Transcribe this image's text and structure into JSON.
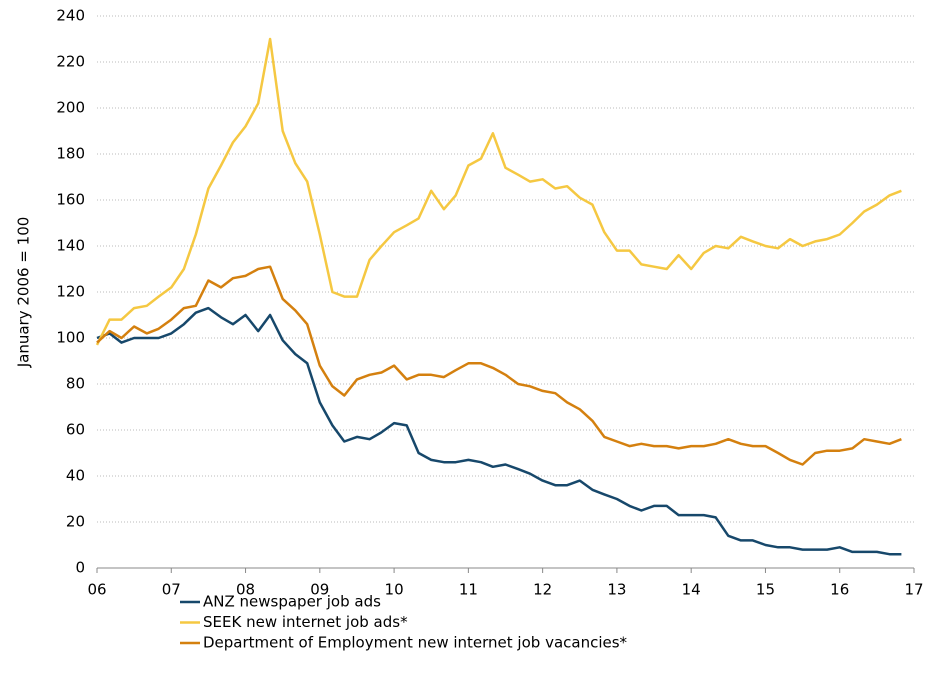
{
  "chart_data": {
    "type": "line",
    "y_label": "January 2006 = 100",
    "x": [
      2006,
      2006.17,
      2006.33,
      2006.5,
      2006.67,
      2006.83,
      2007,
      2007.17,
      2007.33,
      2007.5,
      2007.67,
      2007.83,
      2008,
      2008.17,
      2008.33,
      2008.5,
      2008.67,
      2008.83,
      2009,
      2009.17,
      2009.33,
      2009.5,
      2009.67,
      2009.83,
      2010,
      2010.17,
      2010.33,
      2010.5,
      2010.67,
      2010.83,
      2011,
      2011.17,
      2011.33,
      2011.5,
      2011.67,
      2011.83,
      2012,
      2012.17,
      2012.33,
      2012.5,
      2012.67,
      2012.83,
      2013,
      2013.17,
      2013.33,
      2013.5,
      2013.67,
      2013.83,
      2014,
      2014.17,
      2014.33,
      2014.5,
      2014.67,
      2014.83,
      2015,
      2015.17,
      2015.33,
      2015.5,
      2015.67,
      2015.83,
      2016,
      2016.17,
      2016.33,
      2016.5,
      2016.67,
      2016.83
    ],
    "series": [
      {
        "name": "ANZ newspaper job ads",
        "color": "#17486b",
        "values": [
          100,
          102,
          98,
          100,
          100,
          100,
          102,
          106,
          111,
          113,
          109,
          106,
          110,
          103,
          110,
          99,
          93,
          89,
          72,
          62,
          55,
          57,
          56,
          59,
          63,
          62,
          50,
          47,
          46,
          46,
          47,
          46,
          44,
          45,
          43,
          41,
          38,
          36,
          36,
          38,
          34,
          32,
          30,
          27,
          25,
          27,
          27,
          23,
          23,
          23,
          22,
          14,
          12,
          12,
          10,
          9,
          9,
          8,
          8,
          8,
          9,
          7,
          7,
          7,
          6,
          6
        ]
      },
      {
        "name": "SEEK new internet job ads*",
        "color": "#f5c842",
        "values": [
          97,
          108,
          108,
          113,
          114,
          118,
          122,
          130,
          145,
          165,
          175,
          185,
          192,
          202,
          230,
          190,
          176,
          168,
          145,
          120,
          118,
          118,
          134,
          140,
          146,
          149,
          152,
          164,
          156,
          162,
          175,
          178,
          189,
          174,
          171,
          168,
          169,
          165,
          166,
          161,
          158,
          146,
          138,
          138,
          132,
          131,
          130,
          136,
          130,
          137,
          140,
          139,
          144,
          142,
          140,
          139,
          143,
          140,
          142,
          143,
          145,
          150,
          155,
          158,
          162,
          164
        ]
      },
      {
        "name": "Department of Employment new internet job vacancies*",
        "color": "#d4800f",
        "values": [
          98,
          103,
          100,
          105,
          102,
          104,
          108,
          113,
          114,
          125,
          122,
          126,
          127,
          130,
          131,
          117,
          112,
          106,
          88,
          79,
          75,
          82,
          84,
          85,
          88,
          82,
          84,
          84,
          83,
          86,
          89,
          89,
          87,
          84,
          80,
          79,
          77,
          76,
          72,
          69,
          64,
          57,
          55,
          53,
          54,
          53,
          53,
          52,
          53,
          53,
          54,
          56,
          54,
          53,
          53,
          50,
          47,
          45,
          50,
          51,
          51,
          52,
          56,
          55,
          54,
          56
        ]
      }
    ],
    "xlim": [
      2006,
      2017
    ],
    "xticks": [
      {
        "value": 2006,
        "label": "06"
      },
      {
        "value": 2007,
        "label": "07"
      },
      {
        "value": 2008,
        "label": "08"
      },
      {
        "value": 2009,
        "label": "09"
      },
      {
        "value": 2010,
        "label": "10"
      },
      {
        "value": 2011,
        "label": "11"
      },
      {
        "value": 2012,
        "label": "12"
      },
      {
        "value": 2013,
        "label": "13"
      },
      {
        "value": 2014,
        "label": "14"
      },
      {
        "value": 2015,
        "label": "15"
      },
      {
        "value": 2016,
        "label": "16"
      },
      {
        "value": 2017,
        "label": "17"
      }
    ],
    "ylim": [
      0,
      240
    ],
    "yticks": [
      0,
      20,
      40,
      60,
      80,
      100,
      120,
      140,
      160,
      180,
      200,
      220,
      240
    ],
    "grid": true,
    "legend": "bottom"
  }
}
